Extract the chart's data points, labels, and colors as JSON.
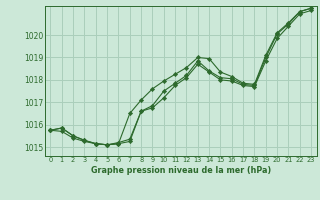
{
  "title": "Graphe pression niveau de la mer (hPa)",
  "background_color": "#cce8d8",
  "grid_color": "#aacebb",
  "line_color": "#2d6a2d",
  "marker_color": "#2d6a2d",
  "xlim": [
    -0.5,
    23.5
  ],
  "ylim": [
    1014.6,
    1021.3
  ],
  "yticks": [
    1015,
    1016,
    1017,
    1018,
    1019,
    1020
  ],
  "xticks": [
    0,
    1,
    2,
    3,
    4,
    5,
    6,
    7,
    8,
    9,
    10,
    11,
    12,
    13,
    14,
    15,
    16,
    17,
    18,
    19,
    20,
    21,
    22,
    23
  ],
  "series": [
    [
      1015.75,
      1015.85,
      1015.5,
      1015.3,
      1015.15,
      1015.1,
      1015.15,
      1015.25,
      1016.6,
      1016.85,
      1017.5,
      1017.85,
      1018.2,
      1018.85,
      1018.4,
      1018.1,
      1018.05,
      1017.8,
      1017.75,
      1019.0,
      1020.05,
      1020.5,
      1021.05,
      1021.2
    ],
    [
      1015.75,
      1015.85,
      1015.5,
      1015.3,
      1015.15,
      1015.1,
      1015.15,
      1016.5,
      1017.1,
      1017.6,
      1017.95,
      1018.25,
      1018.55,
      1019.0,
      1018.95,
      1018.35,
      1018.15,
      1017.85,
      1017.8,
      1019.1,
      1020.1,
      1020.55,
      1021.05,
      1021.2
    ],
    [
      1015.75,
      1015.7,
      1015.4,
      1015.25,
      1015.15,
      1015.1,
      1015.2,
      1015.35,
      1016.6,
      1016.75,
      1017.2,
      1017.75,
      1018.1,
      1018.7,
      1018.35,
      1018.0,
      1017.95,
      1017.75,
      1017.7,
      1018.85,
      1019.85,
      1020.4,
      1020.95,
      1021.1
    ]
  ]
}
